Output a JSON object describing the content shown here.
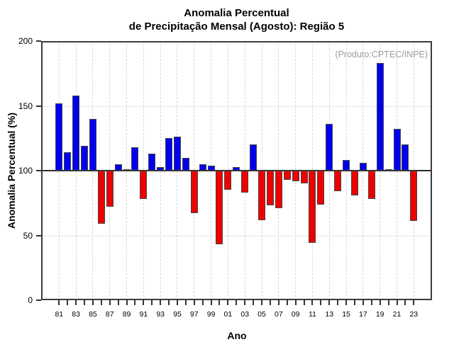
{
  "chart_data": {
    "type": "bar",
    "title": "Anomalia Percentual",
    "subtitle": "de Precipitação Mensal (Agosto): Região 5",
    "xlabel": "Ano",
    "ylabel": "Anomalia Percentual (%)",
    "annotation": "(Produto:CPTEC/INPE)",
    "baseline": 100,
    "ylim": [
      0,
      200
    ],
    "yticks": [
      0,
      50,
      100,
      150,
      200
    ],
    "grid_y_values": [
      50,
      150
    ],
    "grid": "dashed-light-gray",
    "legend_position": "none",
    "years": [
      1981,
      1982,
      1983,
      1984,
      1985,
      1986,
      1987,
      1988,
      1989,
      1990,
      1991,
      1992,
      1993,
      1994,
      1995,
      1996,
      1997,
      1998,
      1999,
      2000,
      2001,
      2002,
      2003,
      2004,
      2005,
      2006,
      2007,
      2008,
      2009,
      2010,
      2011,
      2012,
      2013,
      2014,
      2015,
      2016,
      2017,
      2018,
      2019,
      2020,
      2021,
      2022,
      2023
    ],
    "values": [
      152,
      114,
      158,
      119,
      140,
      59,
      72,
      105,
      101,
      118,
      78,
      113,
      103,
      125,
      126,
      110,
      67,
      105,
      104,
      43,
      85,
      103,
      83,
      120,
      62,
      73,
      71,
      93,
      92,
      90,
      44,
      74,
      136,
      84,
      108,
      81,
      106,
      78,
      183,
      101,
      132,
      120,
      61
    ],
    "x_tick_labels": [
      "81",
      "83",
      "85",
      "87",
      "89",
      "91",
      "93",
      "95",
      "97",
      "99",
      "01",
      "03",
      "05",
      "07",
      "09",
      "11",
      "13",
      "15",
      "17",
      "19",
      "21",
      "23"
    ],
    "colors": {
      "positive_bar": "#0000ee",
      "negative_bar": "#ee0000",
      "bar_border": "#444444",
      "grid_line": "#d7d7d7",
      "frame": "#3c3c3c",
      "baseline_line": "#2a2a2a",
      "annotation_text": "#9c9c9c"
    }
  }
}
